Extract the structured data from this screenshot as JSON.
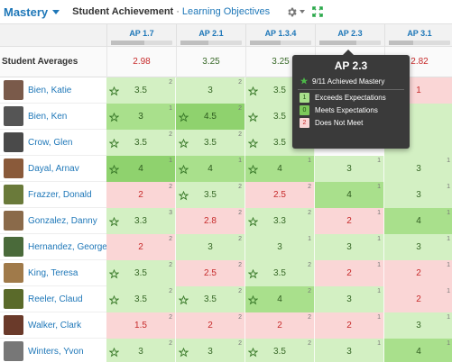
{
  "toolbar": {
    "mode": "Mastery",
    "title": "Student Achievement",
    "separator": "·",
    "sublink": "Learning Objectives"
  },
  "columns": [
    {
      "label": "AP 1.7",
      "progress": 0.55
    },
    {
      "label": "AP 2.1",
      "progress": 0.45
    },
    {
      "label": "AP 1.3.4",
      "progress": 0.5
    },
    {
      "label": "AP 2.3",
      "progress": 0.6
    },
    {
      "label": "AP 3.1",
      "progress": 0.4
    }
  ],
  "averages": {
    "label": "Student Averages",
    "values": [
      "2.98",
      "3.25",
      "3.25",
      "",
      "2.82"
    ]
  },
  "tooltip": {
    "title": "AP 2.3",
    "mastery": "9/11 Achieved Mastery",
    "legend": [
      {
        "value": "1",
        "label": "Exceeds Expectations"
      },
      {
        "value": "0",
        "label": "Meets Expectations"
      },
      {
        "value": "2",
        "label": "Does Not Meet"
      }
    ]
  },
  "students": [
    {
      "name": "Bien, Katie",
      "avatar": "#7a5a4a",
      "cells": [
        [
          "3.5",
          "2",
          "g1",
          true
        ],
        [
          "3",
          "2",
          "g1",
          false
        ],
        [
          "3.5",
          "3",
          "g1",
          true
        ],
        [
          "",
          "",
          "",
          false
        ],
        [
          "1",
          "",
          "r",
          false
        ]
      ]
    },
    {
      "name": "Bien, Ken",
      "avatar": "#555555",
      "cells": [
        [
          "3",
          "1",
          "g2",
          true
        ],
        [
          "4.5",
          "2",
          "g3",
          true
        ],
        [
          "3.5",
          "2",
          "g1",
          true
        ],
        [
          "",
          "",
          "",
          false
        ],
        [
          "",
          "",
          "g1",
          false
        ]
      ]
    },
    {
      "name": "Crow, Glen",
      "avatar": "#4a4a4a",
      "cells": [
        [
          "3.5",
          "2",
          "g1",
          true
        ],
        [
          "3.5",
          "2",
          "g1",
          true
        ],
        [
          "3.5",
          "2",
          "g1",
          true
        ],
        [
          "",
          "",
          "",
          false
        ],
        [
          "",
          "",
          "g1",
          false
        ]
      ]
    },
    {
      "name": "Dayal, Arnav",
      "avatar": "#8a5a3a",
      "cells": [
        [
          "4",
          "1",
          "g3",
          true
        ],
        [
          "4",
          "1",
          "g2",
          true
        ],
        [
          "4",
          "1",
          "g2",
          true
        ],
        [
          "3",
          "1",
          "g1",
          false
        ],
        [
          "3",
          "1",
          "g1",
          false
        ]
      ]
    },
    {
      "name": "Frazzer, Donald",
      "avatar": "#6a7a3a",
      "cells": [
        [
          "2",
          "2",
          "r",
          false
        ],
        [
          "3.5",
          "2",
          "g1",
          true
        ],
        [
          "2.5",
          "2",
          "r",
          false
        ],
        [
          "4",
          "1",
          "g2",
          false
        ],
        [
          "3",
          "1",
          "g1",
          false
        ]
      ]
    },
    {
      "name": "Gonzalez, Danny",
      "avatar": "#8a6a4a",
      "cells": [
        [
          "3.3",
          "3",
          "g1",
          true
        ],
        [
          "2.8",
          "2",
          "r",
          false
        ],
        [
          "3.3",
          "2",
          "g1",
          true
        ],
        [
          "2",
          "1",
          "r",
          false
        ],
        [
          "4",
          "1",
          "g2",
          false
        ]
      ]
    },
    {
      "name": "Hernandez, George",
      "avatar": "#4a6a3a",
      "cells": [
        [
          "2",
          "2",
          "r",
          false
        ],
        [
          "3",
          "2",
          "g1",
          false
        ],
        [
          "3",
          "1",
          "g1",
          false
        ],
        [
          "3",
          "1",
          "g1",
          false
        ],
        [
          "3",
          "1",
          "g1",
          false
        ]
      ]
    },
    {
      "name": "King, Teresa",
      "avatar": "#a07a4a",
      "cells": [
        [
          "3.5",
          "2",
          "g1",
          true
        ],
        [
          "2.5",
          "2",
          "r",
          false
        ],
        [
          "3.5",
          "2",
          "g1",
          true
        ],
        [
          "2",
          "1",
          "r",
          false
        ],
        [
          "2",
          "1",
          "r",
          false
        ]
      ]
    },
    {
      "name": "Reeler, Claud",
      "avatar": "#5a6a2a",
      "cells": [
        [
          "3.5",
          "2",
          "g1",
          true
        ],
        [
          "3.5",
          "2",
          "g1",
          true
        ],
        [
          "4",
          "2",
          "g2",
          true
        ],
        [
          "3",
          "1",
          "g1",
          false
        ],
        [
          "2",
          "1",
          "r",
          false
        ]
      ]
    },
    {
      "name": "Walker, Clark",
      "avatar": "#6a3a2a",
      "cells": [
        [
          "1.5",
          "2",
          "r",
          false
        ],
        [
          "2",
          "2",
          "r",
          false
        ],
        [
          "2",
          "2",
          "r",
          false
        ],
        [
          "2",
          "1",
          "r",
          false
        ],
        [
          "3",
          "1",
          "g1",
          false
        ]
      ]
    },
    {
      "name": "Winters, Yvon",
      "avatar": "#777777",
      "cells": [
        [
          "3",
          "2",
          "g1",
          true
        ],
        [
          "3",
          "2",
          "g1",
          true
        ],
        [
          "3.5",
          "2",
          "g1",
          true
        ],
        [
          "3",
          "1",
          "g1",
          false
        ],
        [
          "4",
          "1",
          "g2",
          false
        ]
      ]
    }
  ],
  "colors": {
    "link": "#1e77b8",
    "pass": "#3a6a2a",
    "fail": "#c62a2a",
    "tooltip": "#3a3a3a"
  }
}
